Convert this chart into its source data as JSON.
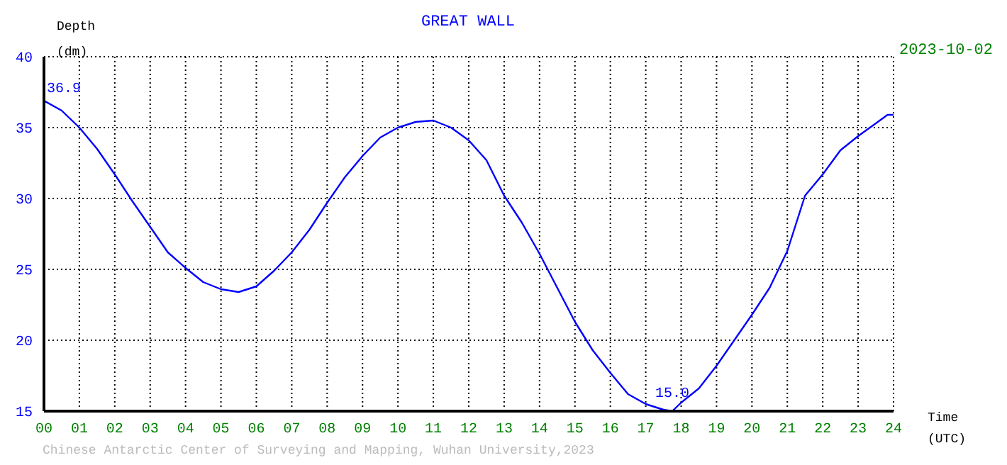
{
  "chart_data": {
    "type": "line",
    "title": "GREAT WALL",
    "subtitle": "2023-10-02",
    "xlabel": "Time (UTC)",
    "ylabel": "Depth (dm)",
    "annotations": [
      {
        "text": "36.9",
        "x": 0,
        "y": 36.9
      },
      {
        "text": "15.0",
        "x": 17.75,
        "y": 15.0
      },
      "Chinese Antarctic Center of Surveying and Mapping, Wuhan University,2023"
    ],
    "x": [
      0,
      0.5,
      1,
      1.5,
      2,
      2.5,
      3,
      3.5,
      4,
      4.5,
      5,
      5.5,
      6,
      6.5,
      7,
      7.5,
      8,
      8.5,
      9,
      9.5,
      10,
      10.5,
      11,
      11.5,
      12,
      12.5,
      13,
      13.5,
      14,
      14.5,
      15,
      15.5,
      16,
      16.5,
      17,
      17.5,
      17.75,
      18,
      18.5,
      19,
      19.5,
      20,
      20.5,
      21,
      21.5,
      22,
      22.5,
      23,
      23.5,
      23.83,
      24
    ],
    "series": [
      {
        "color": "#0000ff",
        "values": [
          36.9,
          36.2,
          35.0,
          33.5,
          31.7,
          29.8,
          28.0,
          26.2,
          25.1,
          24.1,
          23.6,
          23.4,
          23.8,
          24.9,
          26.2,
          27.8,
          29.7,
          31.5,
          33.0,
          34.3,
          35.0,
          35.4,
          35.5,
          35.0,
          34.1,
          32.7,
          30.2,
          28.3,
          26.1,
          23.7,
          21.3,
          19.3,
          17.7,
          16.2,
          15.5,
          15.1,
          15.0,
          15.6,
          16.6,
          18.2,
          20.0,
          21.8,
          23.7,
          26.3,
          30.2,
          31.7,
          33.4,
          34.4,
          35.3,
          35.9,
          35.9
        ]
      }
    ],
    "xlim": [
      0,
      24
    ],
    "xticks": [
      {
        "value": 0,
        "label": "00"
      },
      {
        "value": 1,
        "label": "01"
      },
      {
        "value": 2,
        "label": "02"
      },
      {
        "value": 3,
        "label": "03"
      },
      {
        "value": 4,
        "label": "04"
      },
      {
        "value": 5,
        "label": "05"
      },
      {
        "value": 6,
        "label": "06"
      },
      {
        "value": 7,
        "label": "07"
      },
      {
        "value": 8,
        "label": "08"
      },
      {
        "value": 9,
        "label": "09"
      },
      10,
      11,
      12,
      13,
      14,
      15,
      16,
      17,
      18,
      19,
      20,
      21,
      22,
      23,
      24
    ],
    "ylim": [
      15,
      40
    ],
    "yticks": [
      15,
      20,
      25,
      30,
      35,
      40
    ],
    "grid": true,
    "line_style": "solid"
  }
}
